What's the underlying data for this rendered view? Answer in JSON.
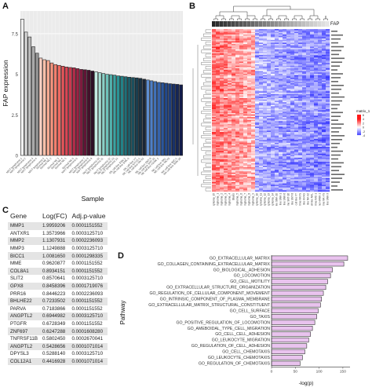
{
  "panels": {
    "a": "A",
    "b": "B",
    "c": "C",
    "d": "D"
  },
  "panelA": {
    "chart_data": {
      "type": "bar",
      "ylabel": "FAP expression",
      "xlabel": "Sample",
      "yticks": [
        0,
        2.5,
        5,
        7.5
      ],
      "ylim": [
        0,
        8.9
      ],
      "values": [
        8.4,
        7.6,
        7.3,
        6.7,
        6.3,
        6.0,
        5.9,
        5.85,
        5.7,
        5.6,
        5.55,
        5.5,
        5.45,
        5.42,
        5.4,
        5.35,
        5.3,
        5.28,
        5.25,
        5.2,
        5.15,
        5.1,
        5.05,
        5.0,
        4.98,
        4.95,
        4.9,
        4.88,
        4.85,
        4.82,
        4.8,
        4.78,
        4.75,
        4.7,
        4.65,
        4.6,
        4.55,
        4.5,
        4.48,
        4.45,
        4.42,
        4.4,
        4.38,
        4.35
      ],
      "colors": [
        "#f0f0f0",
        "#d7d7d7",
        "#bdbdbd",
        "#a9a9a9",
        "#969696",
        "#ffd3c6",
        "#fcc0aa",
        "#fbac94",
        "#f8957f",
        "#f47f6e",
        "#ee6a62",
        "#e5565a",
        "#d94654",
        "#c9394e",
        "#b32d4a",
        "#9b2244",
        "#7e1a3d",
        "#611536",
        "#45102b",
        "#2e0e26",
        "#c3ebe3",
        "#a8e0d6",
        "#8bd1c7",
        "#6ec2ba",
        "#53b2ad",
        "#3ca3a1",
        "#2b9395",
        "#228287",
        "#1f7079",
        "#1d5f6b",
        "#1b4f5e",
        "#1a3f51",
        "#193244",
        "#1a2637",
        "#5f8fd2",
        "#4f7fc6",
        "#4171b9",
        "#3563ab",
        "#2b569c",
        "#23498c",
        "#1d3d7b",
        "#18316a",
        "#152659",
        "#121c4a"
      ],
      "categories_visible": [
        "NK/T lymphoma 1",
        "NK/T lymphoma 2",
        "NK/T lymphoma 3",
        "NK/T lymphoma 4",
        "NK/T lymphoma 5",
        "Normal NK 1",
        "Normal NK 2",
        "Normal NK 3",
        "Normal NK 4",
        "Normal NK 5",
        "Normal NK 6",
        "NK/T lymphoma 6",
        "NK/T lymphoma 7",
        "NK/T lymphoma 8",
        "NK/T lymphoma 9",
        "NK/T lymphoma 10",
        "NK/T lymphoma 11",
        "NK/T lymphoma 12",
        "NK/T lymphoma 13",
        "NK/T lymphoma 14",
        "NK cell line SNK-1",
        "NK cell line SNK-6",
        "NK cell line YT",
        "NK cell line KHYG-1",
        "NK cell line NK-92",
        "NK cell line SNT-8",
        "NK cell line SNT-16",
        "NK cell line HANK-1",
        "NK cell line NKL",
        "NK cell line NKYS",
        "NK cell line IMC-1",
        "NK cell line SNK-10"
      ]
    }
  },
  "panelB": {
    "fap_label": "FAP",
    "legend": {
      "title": "matrix_1",
      "ticks": [
        "6",
        "4",
        "2",
        "0",
        "-2",
        "-4"
      ]
    },
    "col_labels": [
      "NK/T_lymphoma_15",
      "NK/T_lymphoma_1",
      "NK/T_lymphoma_2",
      "NK/T_lymphoma_3",
      "NK/T_lymphoma_4",
      "Blasts",
      "NK/T_lymphoma_5",
      "NK/T_lymphoma_6",
      "NK/T_lymphoma_7",
      "NK/T_lymphoma_8",
      "NK/T_lymphoma_9",
      "NK/T_lymphoma_10",
      "NK/T_lymphoma_11",
      "NK/T_lymphoma_12",
      "NK/T_lymphoma_13",
      "NK/T_lymphoma_14",
      "NK-cell line SNK-10",
      "NK-cell line SNK-1",
      "NK-cell line SNK-6",
      "NK-cell line SNT-16",
      "NK-cell line SNT-8",
      "NK-cell line YT",
      "NK-cell line NKYS",
      "NK-cell line KHYG",
      "NK-cell line NK-92",
      "NK-cell line NKL",
      "NK-cell line IMC-1",
      "NK-cell line HANK-1",
      "NK-cell line NK-YS",
      "NK-cell line SNK-3"
    ]
  },
  "panelC": {
    "headers": [
      "Gene",
      "Log(FC)",
      "Adj.p-value"
    ],
    "rows": [
      [
        "MMP1",
        "1.9959206",
        "0.0001151552"
      ],
      [
        "ANTXR1",
        "1.3573966",
        "0.0003125710"
      ],
      [
        "MMP2",
        "1.1307931",
        "0.0002236093"
      ],
      [
        "MMP3",
        "1.1249888",
        "0.0003125710"
      ],
      [
        "BICC1",
        "1.0081650",
        "0.0001298335"
      ],
      [
        "MME",
        "0.9620877",
        "0.0001151552"
      ],
      [
        "COL8A1",
        "0.8934151",
        "0.0001151552"
      ],
      [
        "SLIT2",
        "0.8570641",
        "0.0003125710"
      ],
      [
        "GPX8",
        "0.8458396",
        "0.0001719076"
      ],
      [
        "PRR16",
        "0.8446223",
        "0.0002236093"
      ],
      [
        "BHLHE22",
        "0.7233502",
        "0.0001151552"
      ],
      [
        "PARVA",
        "0.7183866",
        "0.0001151552"
      ],
      [
        "ANGPTL2",
        "0.6944982",
        "0.0003125710"
      ],
      [
        "PTGFR",
        "0.6728349",
        "0.0001151552"
      ],
      [
        "ZNF697",
        "0.6247288",
        "0.0001608280"
      ],
      [
        "TNFRSF11B",
        "0.5802450",
        "0.0002670041"
      ],
      [
        "ANGPTL2",
        "0.5428656",
        "0.0001071014"
      ],
      [
        "DPYSL3",
        "0.5288140",
        "0.0003125710"
      ],
      [
        "COL12A1",
        "0.4416928",
        "0.0001071014"
      ]
    ]
  },
  "panelD": {
    "chart_data": {
      "type": "bar",
      "orientation": "horizontal",
      "ylabel": "Pathway",
      "xlabel": "-log(p)",
      "xticks": [
        0,
        50,
        100,
        150
      ],
      "xlim": [
        0,
        165
      ],
      "categories": [
        "GO_EXTRACELLULAR_MATRIX",
        "GO_COLLAGEN_CONTAINING_EXTRACELLULAR_MATRIX",
        "GO_BIOLOGICAL_ADHESION",
        "GO_LOCOMOTION",
        "GO_CELL_MOTILITY",
        "GO_EXTRACELLULAR_STRUCTURE_ORGANIZATION",
        "GO_REGULATION_OF_CELLULAR_COMPONENT_MOVEMENT",
        "GO_INTRINSIC_COMPONENT_OF_PLASMA_MEMBRANE",
        "GO_EXTRACELLULAR_MATRIX_STRUCTURAL_CONSTITUENT",
        "GO_CELL_SURFACE",
        "GO_TAXIS",
        "GO_POSITIVE_REGULATION_OF_LOCOMOTION",
        "GO_AMEBOIDAL_TYPE_CELL_MIGRATION",
        "GO_CELL_CELL_ADHESION",
        "GO_LEUKOCYTE_MIGRATION",
        "GO_REGULATION_OF_CELL_ADHESION",
        "GO_CELL_CHEMOTAXIS",
        "GO_LEUKOCYTE_CHEMOTAXIS",
        "GO_REGULATION_OF_CHEMOTAXIS"
      ],
      "values": [
        160,
        152,
        128,
        124,
        118,
        114,
        109,
        105,
        103,
        98,
        95,
        91,
        86,
        82,
        78,
        74,
        70,
        65,
        60
      ],
      "bar_color": "#e9c3ee",
      "bar_stroke": "#333333"
    }
  }
}
